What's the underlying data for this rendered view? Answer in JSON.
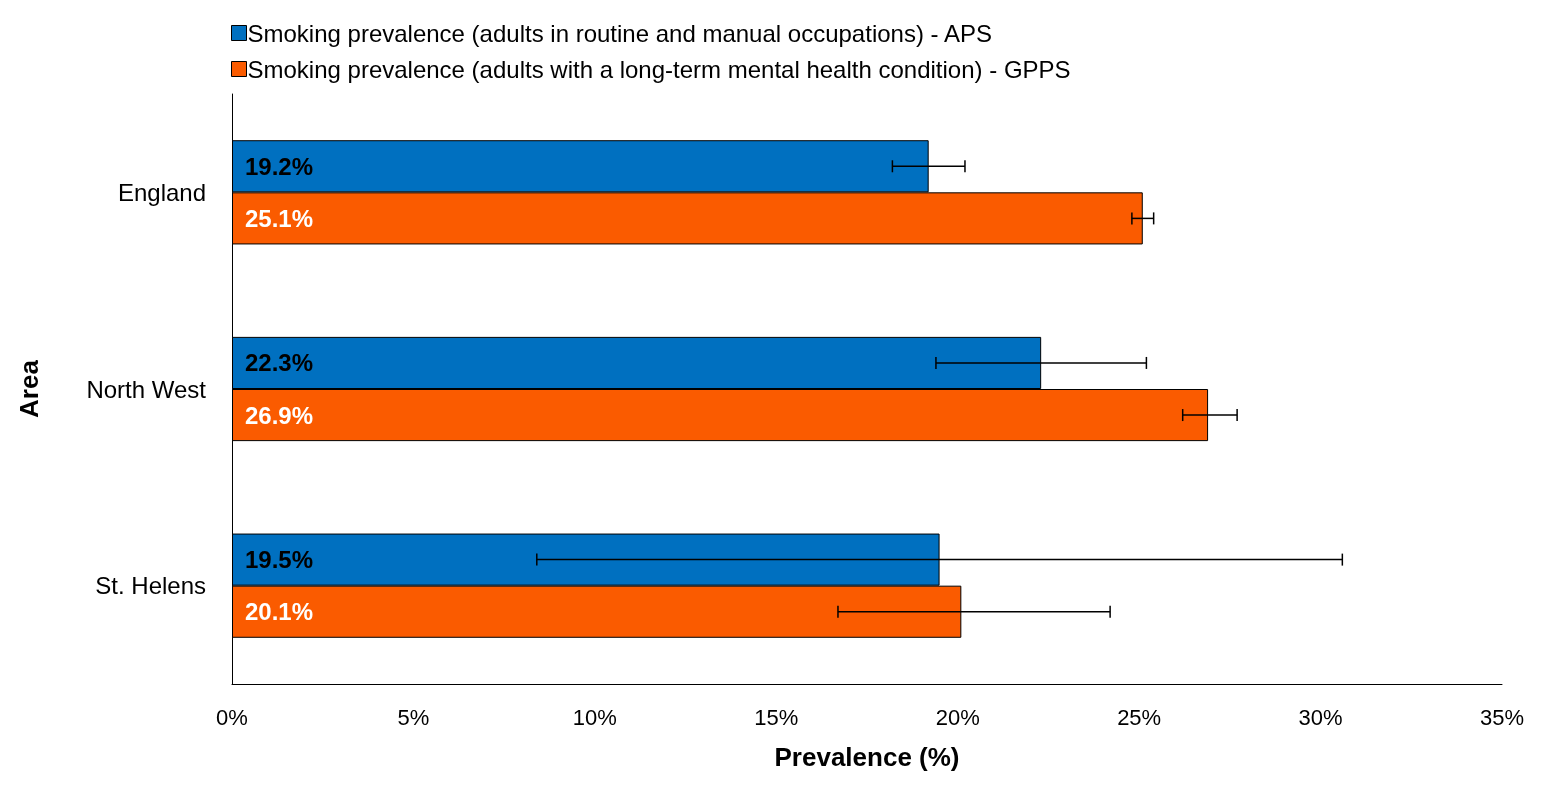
{
  "chart_data": {
    "type": "bar",
    "orientation": "horizontal",
    "xlabel": "Prevalence (%)",
    "ylabel": "Area",
    "categories": [
      "England",
      "North West",
      "St. Helens"
    ],
    "series": [
      {
        "name": "Smoking prevalence (adults in routine and manual occupations) - APS",
        "color": "#0070c0",
        "values": [
          19.2,
          22.3,
          19.5
        ],
        "value_labels": [
          "19.2%",
          "22.3%",
          "19.5%"
        ],
        "errors": [
          [
            18.2,
            20.2
          ],
          [
            19.4,
            25.2
          ],
          [
            8.4,
            30.6
          ]
        ]
      },
      {
        "name": "Smoking prevalence (adults with a long-term mental health condition) - GPPS",
        "color": "#fa5b00",
        "values": [
          25.1,
          26.9,
          20.1
        ],
        "value_labels": [
          "25.1%",
          "26.9%",
          "20.1%"
        ],
        "errors": [
          [
            24.8,
            25.4
          ],
          [
            26.2,
            27.7
          ],
          [
            16.7,
            24.2
          ]
        ]
      }
    ],
    "xlim": [
      0,
      35
    ],
    "xticks": [
      {
        "value": 0,
        "label": "0%"
      },
      {
        "value": 5,
        "label": "5%"
      },
      {
        "value": 10,
        "label": "10%"
      },
      {
        "value": 15,
        "label": "15%"
      },
      {
        "value": 20,
        "label": "20%"
      },
      {
        "value": 25,
        "label": "25%"
      },
      {
        "value": 30,
        "label": "30%"
      },
      {
        "value": 35,
        "label": "35%"
      }
    ],
    "grid": false,
    "legend": "top left"
  }
}
